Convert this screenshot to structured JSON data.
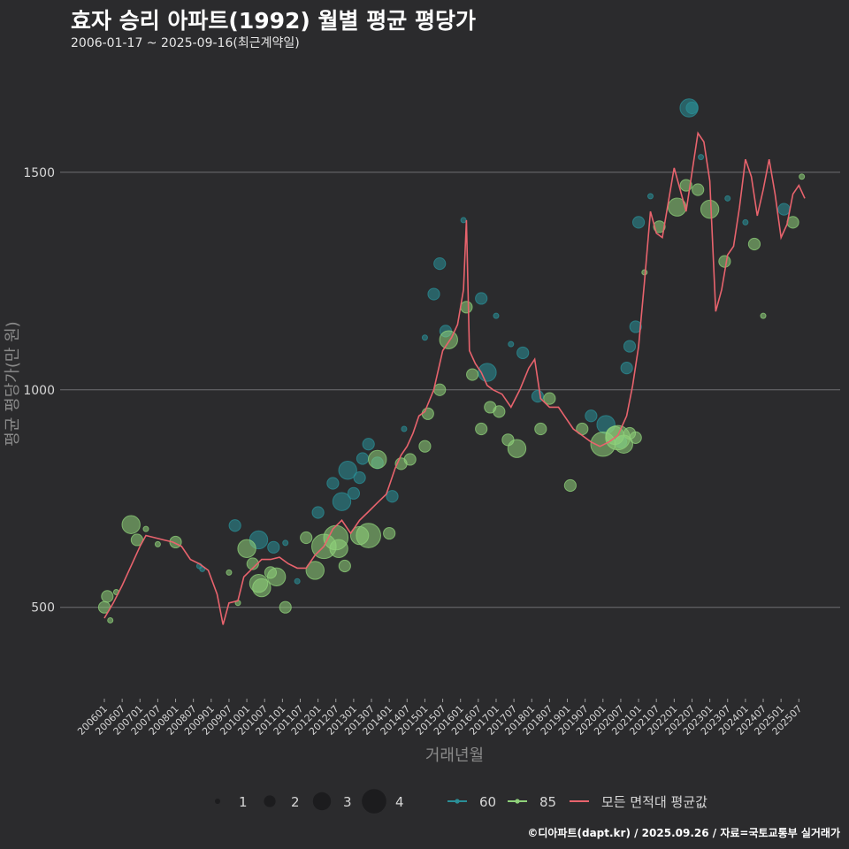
{
  "title": "효자 승리 아파트(1992) 월별 평균 평당가",
  "subtitle": "2006-01-17 ~ 2025-09-16(최근계약일)",
  "credit": "©디아파트(dapt.kr) / 2025.09.26 / 자료=국토교통부 실거래가",
  "colors": {
    "background": "#2b2b2d",
    "grid": "#6e6e72",
    "area60": "#2a8f97",
    "area85": "#8fd17a",
    "avg_line": "#e8636d"
  },
  "chart_data": {
    "type": "line",
    "title": "효자 승리 아파트(1992) 월별 평균 평당가",
    "subtitle": "2006-01-17 ~ 2025-09-16(최근계약일)",
    "xlabel": "거래년월",
    "ylabel": "평균 평당가(만 원)",
    "ylim": [
      290,
      1770
    ],
    "y_ticks": [
      500,
      1000,
      1500
    ],
    "x_range": [
      "2006-01",
      "2025-09"
    ],
    "x_ticks": [
      "200601",
      "200607",
      "200701",
      "200707",
      "200801",
      "200807",
      "200901",
      "200907",
      "201001",
      "201007",
      "201101",
      "201107",
      "201201",
      "201207",
      "201301",
      "201307",
      "201401",
      "201407",
      "201501",
      "201507",
      "201601",
      "201607",
      "201701",
      "201707",
      "201801",
      "201807",
      "201901",
      "201907",
      "202001",
      "202007",
      "202101",
      "202107",
      "202201",
      "202207",
      "202301",
      "202307",
      "202401",
      "202407",
      "202501",
      "202507"
    ],
    "grid": "horizontal",
    "legend": {
      "position": "bottom",
      "size_title": "",
      "sizes": [
        1,
        2,
        3,
        4
      ],
      "area_entries": [
        "60",
        "85"
      ],
      "line_entry": "모든 면적대 평균값"
    },
    "avg_line": {
      "name": "모든 면적대 평균값",
      "points": [
        [
          "2006-01",
          475
        ],
        [
          "2006-04",
          510
        ],
        [
          "2006-07",
          550
        ],
        [
          "2006-09",
          580
        ],
        [
          "2006-11",
          610
        ],
        [
          "2007-01",
          640
        ],
        [
          "2007-03",
          665
        ],
        [
          "2007-06",
          660
        ],
        [
          "2007-09",
          655
        ],
        [
          "2007-12",
          650
        ],
        [
          "2008-03",
          640
        ],
        [
          "2008-06",
          610
        ],
        [
          "2008-09",
          600
        ],
        [
          "2008-12",
          585
        ],
        [
          "2009-03",
          530
        ],
        [
          "2009-05",
          460
        ],
        [
          "2009-07",
          510
        ],
        [
          "2009-10",
          515
        ],
        [
          "2009-12",
          570
        ],
        [
          "2010-03",
          590
        ],
        [
          "2010-06",
          610
        ],
        [
          "2010-09",
          610
        ],
        [
          "2010-12",
          615
        ],
        [
          "2011-03",
          600
        ],
        [
          "2011-06",
          590
        ],
        [
          "2011-09",
          590
        ],
        [
          "2011-12",
          620
        ],
        [
          "2012-03",
          640
        ],
        [
          "2012-06",
          680
        ],
        [
          "2012-09",
          700
        ],
        [
          "2012-12",
          670
        ],
        [
          "2013-03",
          700
        ],
        [
          "2013-06",
          720
        ],
        [
          "2013-09",
          740
        ],
        [
          "2013-12",
          760
        ],
        [
          "2014-01",
          780
        ],
        [
          "2014-03",
          820
        ],
        [
          "2014-05",
          850
        ],
        [
          "2014-07",
          870
        ],
        [
          "2014-09",
          900
        ],
        [
          "2014-11",
          940
        ],
        [
          "2015-01",
          950
        ],
        [
          "2015-04",
          1000
        ],
        [
          "2015-07",
          1090
        ],
        [
          "2015-10",
          1120
        ],
        [
          "2015-12",
          1150
        ],
        [
          "2016-02",
          1230
        ],
        [
          "2016-03",
          1390
        ],
        [
          "2016-04",
          1090
        ],
        [
          "2016-06",
          1060
        ],
        [
          "2016-08",
          1040
        ],
        [
          "2016-10",
          1010
        ],
        [
          "2016-12",
          1000
        ],
        [
          "2017-03",
          990
        ],
        [
          "2017-06",
          960
        ],
        [
          "2017-09",
          1000
        ],
        [
          "2017-12",
          1050
        ],
        [
          "2018-02",
          1070
        ],
        [
          "2018-04",
          980
        ],
        [
          "2018-07",
          960
        ],
        [
          "2018-10",
          960
        ],
        [
          "2018-12",
          940
        ],
        [
          "2019-03",
          910
        ],
        [
          "2019-06",
          895
        ],
        [
          "2019-09",
          880
        ],
        [
          "2019-12",
          870
        ],
        [
          "2020-03",
          880
        ],
        [
          "2020-06",
          895
        ],
        [
          "2020-09",
          940
        ],
        [
          "2020-11",
          1010
        ],
        [
          "2021-01",
          1100
        ],
        [
          "2021-03",
          1250
        ],
        [
          "2021-05",
          1410
        ],
        [
          "2021-07",
          1360
        ],
        [
          "2021-09",
          1350
        ],
        [
          "2021-11",
          1430
        ],
        [
          "2022-01",
          1510
        ],
        [
          "2022-03",
          1460
        ],
        [
          "2022-05",
          1410
        ],
        [
          "2022-07",
          1500
        ],
        [
          "2022-09",
          1590
        ],
        [
          "2022-11",
          1570
        ],
        [
          "2023-01",
          1480
        ],
        [
          "2023-03",
          1180
        ],
        [
          "2023-05",
          1230
        ],
        [
          "2023-07",
          1310
        ],
        [
          "2023-09",
          1330
        ],
        [
          "2023-11",
          1420
        ],
        [
          "2024-01",
          1530
        ],
        [
          "2024-03",
          1490
        ],
        [
          "2024-05",
          1400
        ],
        [
          "2024-07",
          1460
        ],
        [
          "2024-09",
          1530
        ],
        [
          "2024-11",
          1450
        ],
        [
          "2025-01",
          1350
        ],
        [
          "2025-03",
          1380
        ],
        [
          "2025-05",
          1450
        ],
        [
          "2025-07",
          1470
        ],
        [
          "2025-09",
          1440
        ]
      ]
    },
    "series": [
      {
        "name": "60",
        "points": [
          [
            "2008-09",
            595,
            1
          ],
          [
            "2008-10",
            588,
            1
          ],
          [
            "2009-09",
            688,
            2
          ],
          [
            "2010-05",
            655,
            3
          ],
          [
            "2010-10",
            638,
            2
          ],
          [
            "2011-02",
            648,
            1
          ],
          [
            "2011-06",
            560,
            1
          ],
          [
            "2012-01",
            718,
            2
          ],
          [
            "2012-06",
            785,
            2
          ],
          [
            "2012-09",
            743,
            3
          ],
          [
            "2012-11",
            815,
            3
          ],
          [
            "2013-01",
            762,
            2
          ],
          [
            "2013-03",
            798,
            2
          ],
          [
            "2013-04",
            842,
            2
          ],
          [
            "2013-06",
            875,
            2
          ],
          [
            "2013-09",
            832,
            2
          ],
          [
            "2014-02",
            755,
            2
          ],
          [
            "2014-06",
            910,
            1
          ],
          [
            "2015-01",
            1120,
            1
          ],
          [
            "2015-04",
            1220,
            2
          ],
          [
            "2015-06",
            1290,
            2
          ],
          [
            "2015-08",
            1135,
            2
          ],
          [
            "2016-02",
            1390,
            1
          ],
          [
            "2016-08",
            1210,
            2
          ],
          [
            "2016-10",
            1040,
            3
          ],
          [
            "2017-01",
            1170,
            1
          ],
          [
            "2017-06",
            1105,
            1
          ],
          [
            "2017-10",
            1085,
            2
          ],
          [
            "2018-03",
            985,
            2
          ],
          [
            "2019-09",
            940,
            2
          ],
          [
            "2020-02",
            920,
            3
          ],
          [
            "2020-07",
            880,
            2
          ],
          [
            "2020-09",
            1050,
            2
          ],
          [
            "2020-10",
            1100,
            2
          ],
          [
            "2020-12",
            1145,
            2
          ],
          [
            "2021-01",
            1385,
            2
          ],
          [
            "2021-05",
            1445,
            1
          ],
          [
            "2022-06",
            1648,
            3
          ],
          [
            "2022-07",
            1648,
            2
          ],
          [
            "2022-10",
            1535,
            1
          ],
          [
            "2023-07",
            1440,
            1
          ],
          [
            "2024-01",
            1385,
            1
          ],
          [
            "2025-02",
            1415,
            2
          ]
        ]
      },
      {
        "name": "85",
        "points": [
          [
            "2006-01",
            500,
            2
          ],
          [
            "2006-02",
            525,
            2
          ],
          [
            "2006-03",
            470,
            1
          ],
          [
            "2006-05",
            535,
            1
          ],
          [
            "2006-10",
            690,
            3
          ],
          [
            "2006-12",
            655,
            2
          ],
          [
            "2007-03",
            680,
            1
          ],
          [
            "2007-07",
            645,
            1
          ],
          [
            "2008-01",
            650,
            2
          ],
          [
            "2009-07",
            580,
            1
          ],
          [
            "2009-10",
            510,
            1
          ],
          [
            "2010-01",
            635,
            3
          ],
          [
            "2010-03",
            600,
            2
          ],
          [
            "2010-05",
            555,
            3
          ],
          [
            "2010-06",
            545,
            3
          ],
          [
            "2010-09",
            580,
            2
          ],
          [
            "2010-11",
            570,
            3
          ],
          [
            "2011-02",
            500,
            2
          ],
          [
            "2011-09",
            660,
            2
          ],
          [
            "2011-12",
            585,
            3
          ],
          [
            "2012-03",
            640,
            4
          ],
          [
            "2012-07",
            660,
            4
          ],
          [
            "2012-08",
            635,
            3
          ],
          [
            "2012-10",
            595,
            2
          ],
          [
            "2013-03",
            665,
            3
          ],
          [
            "2013-06",
            665,
            4
          ],
          [
            "2013-09",
            840,
            3
          ],
          [
            "2014-01",
            670,
            2
          ],
          [
            "2014-05",
            830,
            2
          ],
          [
            "2014-08",
            840,
            2
          ],
          [
            "2015-01",
            870,
            2
          ],
          [
            "2015-02",
            945,
            2
          ],
          [
            "2015-06",
            1000,
            2
          ],
          [
            "2015-09",
            1115,
            3
          ],
          [
            "2016-03",
            1190,
            2
          ],
          [
            "2016-05",
            1035,
            2
          ],
          [
            "2016-08",
            910,
            2
          ],
          [
            "2016-11",
            960,
            2
          ],
          [
            "2017-02",
            950,
            2
          ],
          [
            "2017-05",
            885,
            2
          ],
          [
            "2017-08",
            865,
            3
          ],
          [
            "2018-04",
            910,
            2
          ],
          [
            "2018-07",
            980,
            2
          ],
          [
            "2019-02",
            780,
            2
          ],
          [
            "2019-06",
            910,
            2
          ],
          [
            "2020-01",
            875,
            4
          ],
          [
            "2020-05",
            895,
            3
          ],
          [
            "2020-06",
            890,
            4
          ],
          [
            "2020-08",
            875,
            3
          ],
          [
            "2020-10",
            900,
            2
          ],
          [
            "2020-12",
            890,
            2
          ],
          [
            "2021-03",
            1270,
            1
          ],
          [
            "2021-08",
            1375,
            2
          ],
          [
            "2022-02",
            1420,
            3
          ],
          [
            "2022-05",
            1470,
            2
          ],
          [
            "2022-09",
            1460,
            2
          ],
          [
            "2023-01",
            1415,
            3
          ],
          [
            "2023-06",
            1295,
            2
          ],
          [
            "2024-04",
            1335,
            2
          ],
          [
            "2024-07",
            1170,
            1
          ],
          [
            "2025-05",
            1385,
            2
          ],
          [
            "2025-08",
            1490,
            1
          ]
        ]
      }
    ]
  }
}
